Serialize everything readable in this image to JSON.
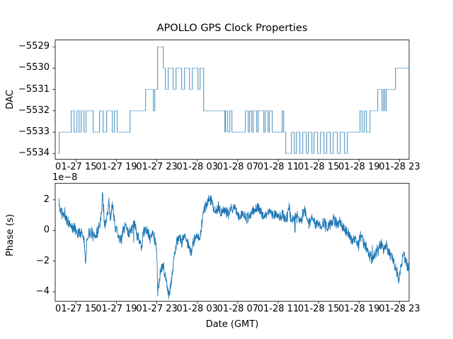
{
  "figure": {
    "background": "#ffffff",
    "line_color": "#1f77b4",
    "spine_color": "#000000"
  },
  "chart_data": [
    {
      "type": "line",
      "subtype": "step",
      "title": "APOLLO GPS Clock Properties",
      "xlabel": "",
      "ylabel": "DAC",
      "x_unit": "hours since 01-27 00:00 GMT",
      "xlim": [
        12.95,
        47.95
      ],
      "ylim": [
        -5534.27,
        -5528.68
      ],
      "grid": false,
      "legend": "none",
      "xticks": [
        15,
        19,
        23,
        27,
        31,
        35,
        39,
        43,
        47
      ],
      "xtick_labels": [
        "01-27 15",
        "01-27 19",
        "01-27 23",
        "01-28 03",
        "01-28 07",
        "01-28 11",
        "01-28 15",
        "01-28 19",
        "01-28 23"
      ],
      "yticks": [
        -5529,
        -5530,
        -5531,
        -5532,
        -5533,
        -5534
      ],
      "ytick_labels": [
        "−5529",
        "−5530",
        "−5531",
        "−5532",
        "−5533",
        "−5534"
      ],
      "series": [
        {
          "name": "DAC steps",
          "color": "#1f77b4",
          "opacity": 0.55,
          "steps": [
            [
              13.21,
              -5534
            ],
            [
              13.35,
              -5533
            ],
            [
              14.54,
              -5532
            ],
            [
              14.82,
              -5533
            ],
            [
              15.1,
              -5532
            ],
            [
              15.31,
              -5533
            ],
            [
              15.52,
              -5532
            ],
            [
              15.8,
              -5533
            ],
            [
              16.01,
              -5532
            ],
            [
              16.71,
              -5533
            ],
            [
              17.34,
              -5532
            ],
            [
              17.69,
              -5533
            ],
            [
              18.04,
              -5532
            ],
            [
              18.6,
              -5533
            ],
            [
              18.81,
              -5532
            ],
            [
              19.09,
              -5533
            ],
            [
              20.35,
              -5532
            ],
            [
              21.89,
              -5531
            ],
            [
              22.66,
              -5532
            ],
            [
              22.8,
              -5531
            ],
            [
              23.08,
              -5529
            ],
            [
              23.64,
              -5530
            ],
            [
              23.85,
              -5531
            ],
            [
              24.13,
              -5530
            ],
            [
              24.62,
              -5531
            ],
            [
              24.9,
              -5530
            ],
            [
              25.46,
              -5531
            ],
            [
              25.74,
              -5530
            ],
            [
              26.23,
              -5531
            ],
            [
              26.51,
              -5530
            ],
            [
              27.07,
              -5531
            ],
            [
              27.28,
              -5530
            ],
            [
              27.63,
              -5532
            ],
            [
              29.73,
              -5533
            ],
            [
              29.8,
              -5532
            ],
            [
              30.01,
              -5533
            ],
            [
              30.22,
              -5532
            ],
            [
              30.43,
              -5533
            ],
            [
              31.76,
              -5532
            ],
            [
              32.04,
              -5533
            ],
            [
              32.18,
              -5532
            ],
            [
              32.39,
              -5533
            ],
            [
              32.53,
              -5532
            ],
            [
              32.88,
              -5533
            ],
            [
              33.02,
              -5532
            ],
            [
              33.58,
              -5533
            ],
            [
              33.72,
              -5532
            ],
            [
              34.0,
              -5533
            ],
            [
              34.14,
              -5532
            ],
            [
              34.42,
              -5533
            ],
            [
              35.4,
              -5532
            ],
            [
              35.54,
              -5533
            ],
            [
              35.75,
              -5534
            ],
            [
              36.31,
              -5533
            ],
            [
              36.59,
              -5534
            ],
            [
              36.8,
              -5533
            ],
            [
              37.15,
              -5534
            ],
            [
              37.43,
              -5533
            ],
            [
              37.78,
              -5534
            ],
            [
              37.99,
              -5533
            ],
            [
              38.34,
              -5534
            ],
            [
              38.55,
              -5533
            ],
            [
              38.9,
              -5534
            ],
            [
              39.18,
              -5533
            ],
            [
              39.53,
              -5534
            ],
            [
              39.81,
              -5533
            ],
            [
              40.16,
              -5534
            ],
            [
              40.44,
              -5533
            ],
            [
              40.86,
              -5534
            ],
            [
              41.14,
              -5533
            ],
            [
              41.56,
              -5534
            ],
            [
              41.84,
              -5533
            ],
            [
              43.1,
              -5532
            ],
            [
              43.31,
              -5533
            ],
            [
              43.52,
              -5532
            ],
            [
              43.73,
              -5533
            ],
            [
              44.08,
              -5532
            ],
            [
              44.85,
              -5531
            ],
            [
              45.27,
              -5532
            ],
            [
              45.41,
              -5531
            ],
            [
              45.55,
              -5532
            ],
            [
              45.69,
              -5531
            ],
            [
              46.6,
              -5530
            ],
            [
              47.95,
              -5530
            ]
          ]
        }
      ]
    },
    {
      "type": "line",
      "subtype": "noisy",
      "title": "",
      "xlabel": "Date (GMT)",
      "ylabel": "Phase (s)",
      "offset_text": "1e−8",
      "y_scale_factor": 1e-08,
      "x_unit": "hours since 01-27 00:00 GMT",
      "xlim": [
        12.95,
        47.95
      ],
      "ylim": [
        -4.62,
        3.08
      ],
      "grid": false,
      "legend": "none",
      "xticks": [
        15,
        19,
        23,
        27,
        31,
        35,
        39,
        43,
        47
      ],
      "xtick_labels": [
        "01-27 15",
        "01-27 19",
        "01-27 23",
        "01-28 03",
        "01-28 07",
        "01-28 11",
        "01-28 15",
        "01-28 19",
        "01-28 23"
      ],
      "yticks": [
        2,
        0,
        -2,
        -4
      ],
      "ytick_labels": [
        "2",
        "0",
        "−2",
        "−4"
      ],
      "series": [
        {
          "name": "Phase",
          "color": "#1f77b4",
          "opacity": 1,
          "anchors": [
            [
              13.3,
              2.05
            ],
            [
              13.42,
              1.45
            ],
            [
              13.6,
              1.15
            ],
            [
              13.9,
              0.9
            ],
            [
              14.2,
              0.6
            ],
            [
              14.5,
              0.3
            ],
            [
              14.8,
              0.1
            ],
            [
              15.1,
              -0.05
            ],
            [
              15.4,
              -0.15
            ],
            [
              15.7,
              -0.2
            ],
            [
              15.85,
              -0.8
            ],
            [
              15.95,
              -2.0
            ],
            [
              16.08,
              -0.7
            ],
            [
              16.3,
              -0.15
            ],
            [
              16.6,
              -0.1
            ],
            [
              16.9,
              -0.4
            ],
            [
              17.15,
              0.0
            ],
            [
              17.4,
              0.5
            ],
            [
              17.55,
              1.5
            ],
            [
              17.63,
              2.7
            ],
            [
              17.72,
              1.2
            ],
            [
              17.85,
              0.4
            ],
            [
              18.05,
              0.8
            ],
            [
              18.25,
              1.85
            ],
            [
              18.42,
              0.7
            ],
            [
              18.6,
              1.85
            ],
            [
              18.75,
              0.85
            ],
            [
              18.95,
              0.2
            ],
            [
              19.2,
              -0.3
            ],
            [
              19.45,
              -0.7
            ],
            [
              19.7,
              0.05
            ],
            [
              19.95,
              0.3
            ],
            [
              20.2,
              -0.3
            ],
            [
              20.5,
              0.1
            ],
            [
              20.8,
              0.35
            ],
            [
              21.05,
              -0.25
            ],
            [
              21.3,
              -0.7
            ],
            [
              21.45,
              -1.15
            ],
            [
              21.62,
              -0.3
            ],
            [
              21.85,
              0.15
            ],
            [
              22.1,
              -0.2
            ],
            [
              22.35,
              -0.5
            ],
            [
              22.6,
              -0.15
            ],
            [
              22.82,
              -0.6
            ],
            [
              23.0,
              -1.5
            ],
            [
              23.1,
              -4.15
            ],
            [
              23.3,
              -2.9
            ],
            [
              23.6,
              -2.3
            ],
            [
              23.9,
              -3.1
            ],
            [
              24.2,
              -4.3
            ],
            [
              24.45,
              -3.2
            ],
            [
              24.7,
              -1.7
            ],
            [
              24.95,
              -0.8
            ],
            [
              25.2,
              -0.4
            ],
            [
              25.45,
              -0.75
            ],
            [
              25.7,
              -0.3
            ],
            [
              25.95,
              -0.7
            ],
            [
              26.2,
              -1.2
            ],
            [
              26.4,
              -1.5
            ],
            [
              26.65,
              -0.7
            ],
            [
              26.9,
              -0.4
            ],
            [
              27.15,
              -0.5
            ],
            [
              27.35,
              -0.2
            ],
            [
              27.6,
              1.3
            ],
            [
              27.85,
              1.6
            ],
            [
              28.1,
              1.9
            ],
            [
              28.35,
              2.05
            ],
            [
              28.6,
              1.45
            ],
            [
              28.85,
              1.2
            ],
            [
              29.1,
              1.5
            ],
            [
              29.35,
              1.15
            ],
            [
              29.6,
              1.4
            ],
            [
              29.85,
              1.2
            ],
            [
              30.1,
              1.05
            ],
            [
              30.35,
              1.35
            ],
            [
              30.6,
              1.5
            ],
            [
              30.9,
              1.15
            ],
            [
              31.2,
              0.9
            ],
            [
              31.5,
              1.1
            ],
            [
              31.8,
              0.75
            ],
            [
              32.1,
              0.9
            ],
            [
              32.4,
              1.2
            ],
            [
              32.7,
              1.4
            ],
            [
              33.0,
              1.55
            ],
            [
              33.3,
              1.25
            ],
            [
              33.6,
              0.95
            ],
            [
              33.9,
              1.1
            ],
            [
              34.2,
              1.3
            ],
            [
              34.5,
              0.95
            ],
            [
              34.8,
              1.05
            ],
            [
              35.1,
              0.8
            ],
            [
              35.4,
              1.0
            ],
            [
              35.7,
              0.75
            ],
            [
              35.95,
              0.9
            ],
            [
              36.07,
              1.8
            ],
            [
              36.2,
              0.85
            ],
            [
              36.5,
              0.6
            ],
            [
              36.8,
              0.9
            ],
            [
              37.1,
              0.7
            ],
            [
              37.35,
              0.9
            ],
            [
              37.6,
              1.4
            ],
            [
              37.8,
              0.7
            ],
            [
              38.1,
              0.45
            ],
            [
              38.4,
              0.75
            ],
            [
              38.7,
              0.35
            ],
            [
              39.0,
              0.6
            ],
            [
              39.3,
              0.25
            ],
            [
              39.6,
              0.55
            ],
            [
              39.9,
              0.15
            ],
            [
              40.2,
              0.45
            ],
            [
              40.5,
              0.7
            ],
            [
              40.8,
              0.35
            ],
            [
              41.1,
              0.55
            ],
            [
              41.4,
              0.15
            ],
            [
              41.7,
              -0.05
            ],
            [
              42.0,
              -0.3
            ],
            [
              42.3,
              -0.75
            ],
            [
              42.6,
              -0.45
            ],
            [
              42.9,
              -0.85
            ],
            [
              43.2,
              -0.35
            ],
            [
              43.5,
              -0.9
            ],
            [
              43.8,
              -1.3
            ],
            [
              44.05,
              -1.6
            ],
            [
              44.3,
              -1.9
            ],
            [
              44.6,
              -1.4
            ],
            [
              44.9,
              -1.2
            ],
            [
              45.2,
              -0.9
            ],
            [
              45.45,
              -1.3
            ],
            [
              45.7,
              -1.0
            ],
            [
              45.95,
              -1.45
            ],
            [
              46.2,
              -1.7
            ],
            [
              46.5,
              -2.2
            ],
            [
              46.75,
              -2.7
            ],
            [
              46.95,
              -3.2
            ],
            [
              47.15,
              -2.3
            ],
            [
              47.4,
              -1.6
            ],
            [
              47.6,
              -2.0
            ],
            [
              47.8,
              -2.5
            ],
            [
              47.95,
              -2.4
            ]
          ],
          "noise": {
            "seed": 11,
            "points": 1600,
            "amp1": 0.3,
            "amp2": 0.13,
            "spike_prob": 0.012,
            "spike_scale": 1.9
          }
        }
      ]
    }
  ]
}
